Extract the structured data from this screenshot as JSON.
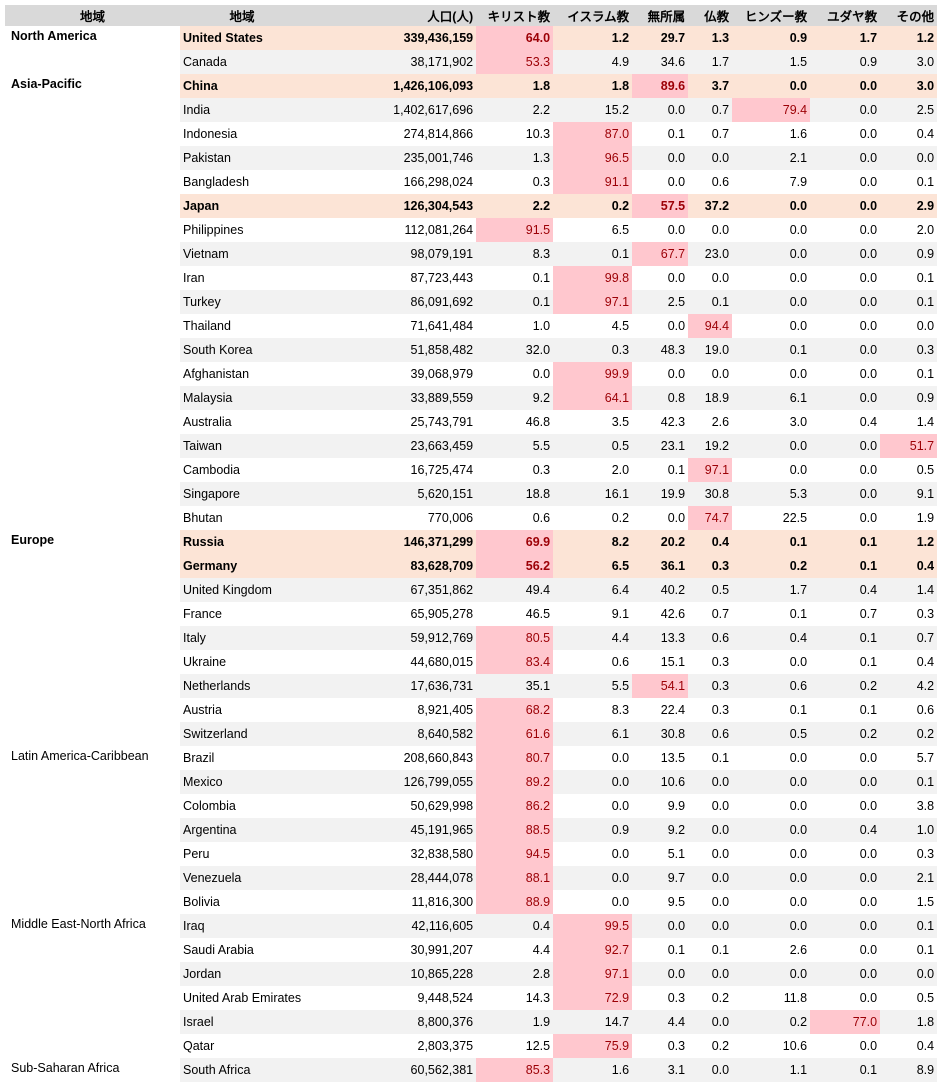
{
  "header": {
    "region": "地域",
    "country": "地域",
    "population": "人口(人)",
    "christian": "キリスト教",
    "muslim": "イスラム教",
    "unaffiliated": "無所属",
    "buddhist": "仏教",
    "hindu": "ヒンズー教",
    "jewish": "ユダヤ教",
    "other": "その他"
  },
  "highlight_colors": {
    "cell_bg": "#ffc7ce",
    "cell_text": "#9c0006",
    "row_bg": "#fce4d6",
    "zebra": "#f2f2f2",
    "header_bg": "#d9d9d9"
  },
  "highlight_threshold": 50,
  "rows": [
    {
      "region": "North America",
      "country": "United States",
      "population": "339,436,159",
      "values": [
        "64.0",
        "1.2",
        "29.7",
        "1.3",
        "0.9",
        "1.7",
        "1.2"
      ],
      "bold": true
    },
    {
      "region": "",
      "country": "Canada",
      "population": "38,171,902",
      "values": [
        "53.3",
        "4.9",
        "34.6",
        "1.7",
        "1.5",
        "0.9",
        "3.0"
      ]
    },
    {
      "region": "Asia-Pacific",
      "country": "China",
      "population": "1,426,106,093",
      "values": [
        "1.8",
        "1.8",
        "89.6",
        "3.7",
        "0.0",
        "0.0",
        "3.0"
      ],
      "bold": true
    },
    {
      "region": "",
      "country": "India",
      "population": "1,402,617,696",
      "values": [
        "2.2",
        "15.2",
        "0.0",
        "0.7",
        "79.4",
        "0.0",
        "2.5"
      ]
    },
    {
      "region": "",
      "country": "Indonesia",
      "population": "274,814,866",
      "values": [
        "10.3",
        "87.0",
        "0.1",
        "0.7",
        "1.6",
        "0.0",
        "0.4"
      ]
    },
    {
      "region": "",
      "country": "Pakistan",
      "population": "235,001,746",
      "values": [
        "1.3",
        "96.5",
        "0.0",
        "0.0",
        "2.1",
        "0.0",
        "0.0"
      ]
    },
    {
      "region": "",
      "country": "Bangladesh",
      "population": "166,298,024",
      "values": [
        "0.3",
        "91.1",
        "0.0",
        "0.6",
        "7.9",
        "0.0",
        "0.1"
      ]
    },
    {
      "region": "",
      "country": "Japan",
      "population": "126,304,543",
      "values": [
        "2.2",
        "0.2",
        "57.5",
        "37.2",
        "0.0",
        "0.0",
        "2.9"
      ],
      "bold": true
    },
    {
      "region": "",
      "country": "Philippines",
      "population": "112,081,264",
      "values": [
        "91.5",
        "6.5",
        "0.0",
        "0.0",
        "0.0",
        "0.0",
        "2.0"
      ]
    },
    {
      "region": "",
      "country": "Vietnam",
      "population": "98,079,191",
      "values": [
        "8.3",
        "0.1",
        "67.7",
        "23.0",
        "0.0",
        "0.0",
        "0.9"
      ]
    },
    {
      "region": "",
      "country": "Iran",
      "population": "87,723,443",
      "values": [
        "0.1",
        "99.8",
        "0.0",
        "0.0",
        "0.0",
        "0.0",
        "0.1"
      ]
    },
    {
      "region": "",
      "country": "Turkey",
      "population": "86,091,692",
      "values": [
        "0.1",
        "97.1",
        "2.5",
        "0.1",
        "0.0",
        "0.0",
        "0.1"
      ]
    },
    {
      "region": "",
      "country": "Thailand",
      "population": "71,641,484",
      "values": [
        "1.0",
        "4.5",
        "0.0",
        "94.4",
        "0.0",
        "0.0",
        "0.0"
      ]
    },
    {
      "region": "",
      "country": "South Korea",
      "population": "51,858,482",
      "values": [
        "32.0",
        "0.3",
        "48.3",
        "19.0",
        "0.1",
        "0.0",
        "0.3"
      ]
    },
    {
      "region": "",
      "country": "Afghanistan",
      "population": "39,068,979",
      "values": [
        "0.0",
        "99.9",
        "0.0",
        "0.0",
        "0.0",
        "0.0",
        "0.1"
      ]
    },
    {
      "region": "",
      "country": "Malaysia",
      "population": "33,889,559",
      "values": [
        "9.2",
        "64.1",
        "0.8",
        "18.9",
        "6.1",
        "0.0",
        "0.9"
      ]
    },
    {
      "region": "",
      "country": "Australia",
      "population": "25,743,791",
      "values": [
        "46.8",
        "3.5",
        "42.3",
        "2.6",
        "3.0",
        "0.4",
        "1.4"
      ]
    },
    {
      "region": "",
      "country": "Taiwan",
      "population": "23,663,459",
      "values": [
        "5.5",
        "0.5",
        "23.1",
        "19.2",
        "0.0",
        "0.0",
        "51.7"
      ]
    },
    {
      "region": "",
      "country": "Cambodia",
      "population": "16,725,474",
      "values": [
        "0.3",
        "2.0",
        "0.1",
        "97.1",
        "0.0",
        "0.0",
        "0.5"
      ]
    },
    {
      "region": "",
      "country": "Singapore",
      "population": "5,620,151",
      "values": [
        "18.8",
        "16.1",
        "19.9",
        "30.8",
        "5.3",
        "0.0",
        "9.1"
      ]
    },
    {
      "region": "",
      "country": "Bhutan",
      "population": "770,006",
      "values": [
        "0.6",
        "0.2",
        "0.0",
        "74.7",
        "22.5",
        "0.0",
        "1.9"
      ]
    },
    {
      "region": "Europe",
      "country": "Russia",
      "population": "146,371,299",
      "values": [
        "69.9",
        "8.2",
        "20.2",
        "0.4",
        "0.1",
        "0.1",
        "1.2"
      ],
      "bold": true
    },
    {
      "region": "",
      "country": "Germany",
      "population": "83,628,709",
      "values": [
        "56.2",
        "6.5",
        "36.1",
        "0.3",
        "0.2",
        "0.1",
        "0.4"
      ],
      "bold": true
    },
    {
      "region": "",
      "country": "United Kingdom",
      "population": "67,351,862",
      "values": [
        "49.4",
        "6.4",
        "40.2",
        "0.5",
        "1.7",
        "0.4",
        "1.4"
      ]
    },
    {
      "region": "",
      "country": "France",
      "population": "65,905,278",
      "values": [
        "46.5",
        "9.1",
        "42.6",
        "0.7",
        "0.1",
        "0.7",
        "0.3"
      ]
    },
    {
      "region": "",
      "country": "Italy",
      "population": "59,912,769",
      "values": [
        "80.5",
        "4.4",
        "13.3",
        "0.6",
        "0.4",
        "0.1",
        "0.7"
      ]
    },
    {
      "region": "",
      "country": "Ukraine",
      "population": "44,680,015",
      "values": [
        "83.4",
        "0.6",
        "15.1",
        "0.3",
        "0.0",
        "0.1",
        "0.4"
      ]
    },
    {
      "region": "",
      "country": "Netherlands",
      "population": "17,636,731",
      "values": [
        "35.1",
        "5.5",
        "54.1",
        "0.3",
        "0.6",
        "0.2",
        "4.2"
      ]
    },
    {
      "region": "",
      "country": "Austria",
      "population": "8,921,405",
      "values": [
        "68.2",
        "8.3",
        "22.4",
        "0.3",
        "0.1",
        "0.1",
        "0.6"
      ]
    },
    {
      "region": "",
      "country": "Switzerland",
      "population": "8,640,582",
      "values": [
        "61.6",
        "6.1",
        "30.8",
        "0.6",
        "0.5",
        "0.2",
        "0.2"
      ]
    },
    {
      "region": "Latin America-Caribbean",
      "country": "Brazil",
      "population": "208,660,843",
      "values": [
        "80.7",
        "0.0",
        "13.5",
        "0.1",
        "0.0",
        "0.0",
        "5.7"
      ]
    },
    {
      "region": "",
      "country": "Mexico",
      "population": "126,799,055",
      "values": [
        "89.2",
        "0.0",
        "10.6",
        "0.0",
        "0.0",
        "0.0",
        "0.1"
      ]
    },
    {
      "region": "",
      "country": "Colombia",
      "population": "50,629,998",
      "values": [
        "86.2",
        "0.0",
        "9.9",
        "0.0",
        "0.0",
        "0.0",
        "3.8"
      ]
    },
    {
      "region": "",
      "country": "Argentina",
      "population": "45,191,965",
      "values": [
        "88.5",
        "0.9",
        "9.2",
        "0.0",
        "0.0",
        "0.4",
        "1.0"
      ]
    },
    {
      "region": "",
      "country": "Peru",
      "population": "32,838,580",
      "values": [
        "94.5",
        "0.0",
        "5.1",
        "0.0",
        "0.0",
        "0.0",
        "0.3"
      ]
    },
    {
      "region": "",
      "country": "Venezuela",
      "population": "28,444,078",
      "values": [
        "88.1",
        "0.0",
        "9.7",
        "0.0",
        "0.0",
        "0.0",
        "2.1"
      ]
    },
    {
      "region": "",
      "country": "Bolivia",
      "population": "11,816,300",
      "values": [
        "88.9",
        "0.0",
        "9.5",
        "0.0",
        "0.0",
        "0.0",
        "1.5"
      ]
    },
    {
      "region": "Middle East-North Africa",
      "country": "Iraq",
      "population": "42,116,605",
      "values": [
        "0.4",
        "99.5",
        "0.0",
        "0.0",
        "0.0",
        "0.0",
        "0.1"
      ]
    },
    {
      "region": "",
      "country": "Saudi Arabia",
      "population": "30,991,207",
      "values": [
        "4.4",
        "92.7",
        "0.1",
        "0.1",
        "2.6",
        "0.0",
        "0.1"
      ]
    },
    {
      "region": "",
      "country": "Jordan",
      "population": "10,865,228",
      "values": [
        "2.8",
        "97.1",
        "0.0",
        "0.0",
        "0.0",
        "0.0",
        "0.0"
      ]
    },
    {
      "region": "",
      "country": "United Arab Emirates",
      "population": "9,448,524",
      "values": [
        "14.3",
        "72.9",
        "0.3",
        "0.2",
        "11.8",
        "0.0",
        "0.5"
      ]
    },
    {
      "region": "",
      "country": "Israel",
      "population": "8,800,376",
      "values": [
        "1.9",
        "14.7",
        "4.4",
        "0.0",
        "0.2",
        "77.0",
        "1.8"
      ]
    },
    {
      "region": "",
      "country": "Qatar",
      "population": "2,803,375",
      "values": [
        "12.5",
        "75.9",
        "0.3",
        "0.2",
        "10.6",
        "0.0",
        "0.4"
      ]
    },
    {
      "region": "Sub-Saharan Africa",
      "country": "South Africa",
      "population": "60,562,381",
      "values": [
        "85.3",
        "1.6",
        "3.1",
        "0.0",
        "1.1",
        "0.1",
        "8.9"
      ]
    }
  ]
}
